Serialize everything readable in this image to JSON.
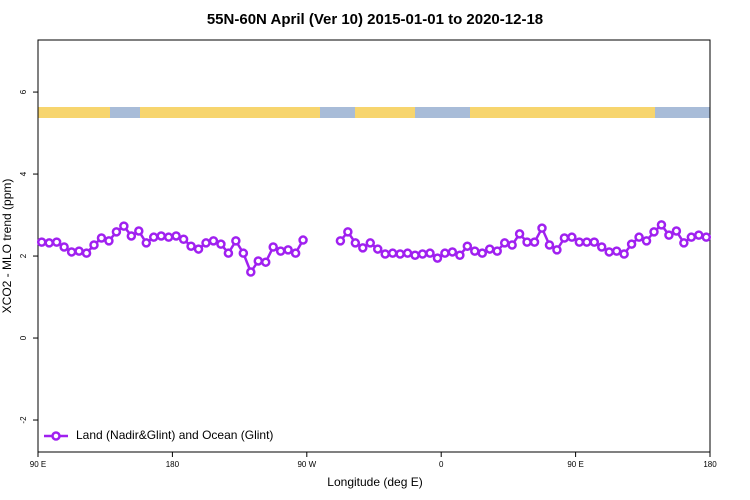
{
  "chart_data": {
    "type": "line",
    "title": "55N-60N April (Ver 10)   2015-01-01 to 2020-12-18",
    "x_label": "Longitude (deg E)",
    "y_label": "XCO2 - MLO trend (ppm)",
    "x": [
      92.5,
      97.5,
      102.5,
      107.5,
      112.5,
      117.5,
      122.5,
      127.5,
      132.5,
      137.5,
      142.5,
      147.5,
      152.5,
      157.5,
      162.5,
      167.5,
      172.5,
      177.5,
      182.5,
      187.5,
      192.5,
      197.5,
      202.5,
      207.5,
      212.5,
      217.5,
      222.5,
      227.5,
      232.5,
      237.5,
      242.5,
      247.5,
      252.5,
      257.5,
      262.5,
      267.5,
      272.5,
      277.5,
      282.5,
      287.5,
      292.5,
      297.5,
      302.5,
      307.5,
      312.5,
      317.5,
      322.5,
      327.5,
      332.5,
      337.5,
      342.5,
      347.5,
      352.5,
      357.5,
      362.5,
      367.5,
      372.5,
      377.5,
      382.5,
      387.5,
      392.5,
      397.5,
      402.5,
      407.5,
      412.5,
      417.5,
      422.5,
      427.5,
      432.5,
      437.5,
      442.5,
      447.5,
      452.5,
      457.5,
      462.5,
      467.5,
      472.5,
      477.5,
      482.5,
      487.5,
      492.5,
      497.5,
      502.5,
      507.5,
      512.5,
      517.5,
      522.5,
      527.5,
      532.5,
      537.5
    ],
    "series": [
      {
        "name": "Land (Nadir&Glint) and Ocean (Glint)",
        "color": "#a020f0",
        "values": [
          2.34,
          2.32,
          2.34,
          2.22,
          2.1,
          2.12,
          2.07,
          2.27,
          2.44,
          2.37,
          2.59,
          2.73,
          2.49,
          2.61,
          2.32,
          2.46,
          2.49,
          2.46,
          2.49,
          2.41,
          2.24,
          2.17,
          2.32,
          2.37,
          2.29,
          2.07,
          2.37,
          2.07,
          1.61,
          1.88,
          1.85,
          2.22,
          2.12,
          2.15,
          2.07,
          2.39,
          null,
          null,
          null,
          null,
          2.37,
          2.59,
          2.32,
          2.2,
          2.32,
          2.17,
          2.05,
          2.07,
          2.05,
          2.07,
          2.02,
          2.05,
          2.07,
          1.95,
          2.07,
          2.1,
          2.02,
          2.24,
          2.12,
          2.07,
          2.17,
          2.12,
          2.32,
          2.27,
          2.54,
          2.34,
          2.34,
          2.68,
          2.27,
          2.15,
          2.44,
          2.46,
          2.34,
          2.34,
          2.34,
          2.22,
          2.1,
          2.12,
          2.05,
          2.29,
          2.46,
          2.37,
          2.59,
          2.76,
          2.51,
          2.61,
          2.32,
          2.46,
          2.51,
          2.46
        ]
      }
    ],
    "xlim": [
      90,
      540
    ],
    "xticks": [
      {
        "value": 90,
        "label": "90 E"
      },
      180,
      {
        "value": 270,
        "label": "90 W"
      },
      {
        "value": 360,
        "label": "0"
      },
      {
        "value": 450,
        "label": "90 E"
      },
      {
        "value": 540,
        "label": "180"
      }
    ],
    "ylim": [
      -2.78,
      7.27
    ],
    "yticks": [
      -2,
      0,
      2,
      4,
      6
    ],
    "legend": "bottom-left"
  }
}
